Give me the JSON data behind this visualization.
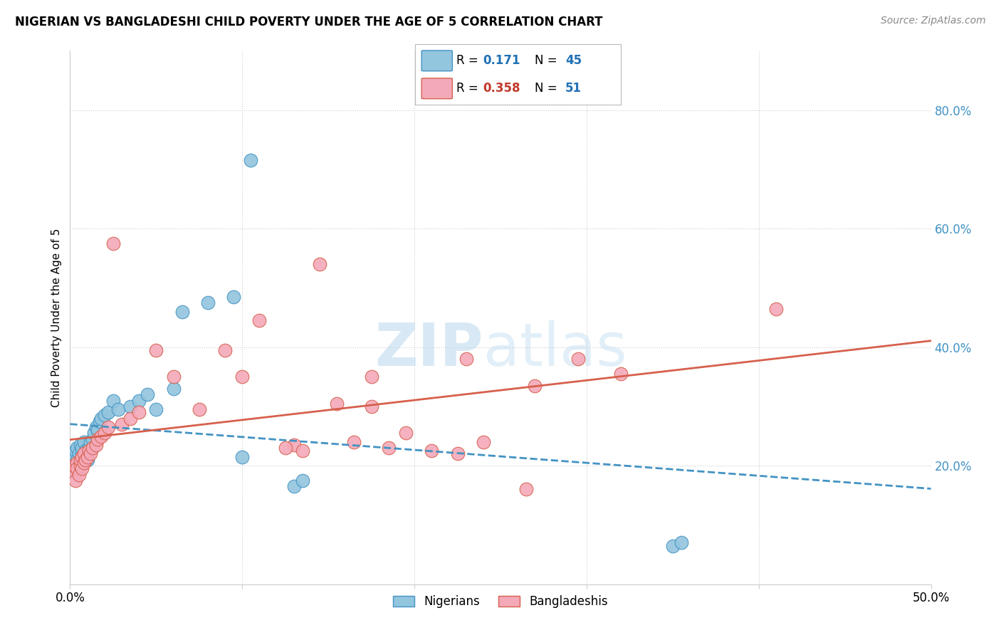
{
  "title": "NIGERIAN VS BANGLADESHI CHILD POVERTY UNDER THE AGE OF 5 CORRELATION CHART",
  "source": "Source: ZipAtlas.com",
  "ylabel": "Child Poverty Under the Age of 5",
  "xlim": [
    0.0,
    0.5
  ],
  "ylim": [
    0.0,
    0.9
  ],
  "xticks": [
    0.0,
    0.1,
    0.2,
    0.3,
    0.4,
    0.5
  ],
  "xtick_labels": [
    "0.0%",
    "",
    "",
    "",
    "",
    "50.0%"
  ],
  "ytick_vals_right": [
    0.2,
    0.4,
    0.6,
    0.8
  ],
  "ytick_labels_right": [
    "20.0%",
    "40.0%",
    "60.0%",
    "80.0%"
  ],
  "nigerians_color": "#92c5de",
  "nigerians_edge": "#4393c3",
  "bangladeshis_color": "#f4a9b8",
  "bangladeshis_edge": "#d6604d",
  "nigerian_line_color": "#4393c3",
  "bangladeshi_line_color": "#d6604d",
  "nigerian_points_x": [
    0.001,
    0.002,
    0.003,
    0.003,
    0.004,
    0.004,
    0.005,
    0.005,
    0.006,
    0.006,
    0.007,
    0.007,
    0.007,
    0.008,
    0.008,
    0.009,
    0.009,
    0.01,
    0.01,
    0.011,
    0.012,
    0.013,
    0.014,
    0.015,
    0.016,
    0.017,
    0.018,
    0.02,
    0.022,
    0.025,
    0.028,
    0.035,
    0.04,
    0.045,
    0.05,
    0.06,
    0.065,
    0.08,
    0.095,
    0.1,
    0.105,
    0.13,
    0.135,
    0.35,
    0.355
  ],
  "nigerian_points_y": [
    0.195,
    0.215,
    0.2,
    0.225,
    0.21,
    0.23,
    0.195,
    0.22,
    0.205,
    0.235,
    0.21,
    0.22,
    0.23,
    0.215,
    0.24,
    0.215,
    0.225,
    0.21,
    0.225,
    0.23,
    0.24,
    0.245,
    0.255,
    0.265,
    0.26,
    0.275,
    0.28,
    0.285,
    0.29,
    0.31,
    0.295,
    0.3,
    0.31,
    0.32,
    0.295,
    0.33,
    0.46,
    0.475,
    0.485,
    0.215,
    0.715,
    0.165,
    0.175,
    0.065,
    0.07
  ],
  "bangladeshi_points_x": [
    0.001,
    0.002,
    0.003,
    0.004,
    0.004,
    0.005,
    0.006,
    0.006,
    0.007,
    0.007,
    0.008,
    0.008,
    0.009,
    0.01,
    0.011,
    0.012,
    0.013,
    0.015,
    0.016,
    0.018,
    0.02,
    0.022,
    0.025,
    0.03,
    0.035,
    0.04,
    0.05,
    0.06,
    0.075,
    0.09,
    0.1,
    0.11,
    0.13,
    0.145,
    0.155,
    0.165,
    0.175,
    0.185,
    0.195,
    0.21,
    0.225,
    0.24,
    0.27,
    0.295,
    0.32,
    0.125,
    0.135,
    0.175,
    0.23,
    0.265,
    0.41
  ],
  "bangladeshi_points_y": [
    0.19,
    0.2,
    0.175,
    0.205,
    0.195,
    0.185,
    0.2,
    0.21,
    0.195,
    0.215,
    0.205,
    0.22,
    0.21,
    0.215,
    0.225,
    0.22,
    0.23,
    0.235,
    0.245,
    0.25,
    0.255,
    0.265,
    0.575,
    0.27,
    0.28,
    0.29,
    0.395,
    0.35,
    0.295,
    0.395,
    0.35,
    0.445,
    0.235,
    0.54,
    0.305,
    0.24,
    0.35,
    0.23,
    0.255,
    0.225,
    0.22,
    0.24,
    0.335,
    0.38,
    0.355,
    0.23,
    0.225,
    0.3,
    0.38,
    0.16,
    0.465
  ]
}
